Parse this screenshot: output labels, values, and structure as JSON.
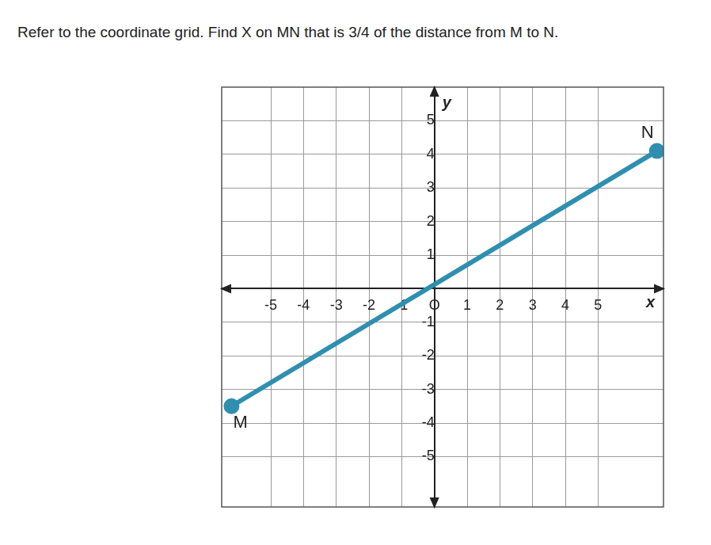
{
  "chart_data": {
    "type": "line",
    "title": "Refer to the coordinate grid. Find X on MN that is 3/4 of the distance from M to N.",
    "xlabel": "x",
    "ylabel": "y",
    "series": [
      {
        "name": "MN",
        "color": "#2f8fb0",
        "x": [
          -6.2,
          6.8
        ],
        "values": [
          -3.5,
          4.1
        ],
        "marker": "circle",
        "line_style": "solid"
      }
    ],
    "annotations": [
      {
        "text": "M",
        "x": -6.2,
        "y": -3.5
      },
      {
        "text": "N",
        "x": 6.8,
        "y": 4.1
      }
    ],
    "xlim": [
      -6.5,
      7
    ],
    "ylim": [
      -6.5,
      6
    ],
    "xticks": [
      -5,
      -4,
      -3,
      -2,
      -1,
      {
        "value": 0,
        "label": "O"
      },
      1,
      2,
      3,
      4,
      5
    ],
    "yticks": [
      -5,
      -4,
      -3,
      -2,
      -1,
      1,
      2,
      3,
      4,
      5
    ],
    "grid": true,
    "legend": false
  }
}
